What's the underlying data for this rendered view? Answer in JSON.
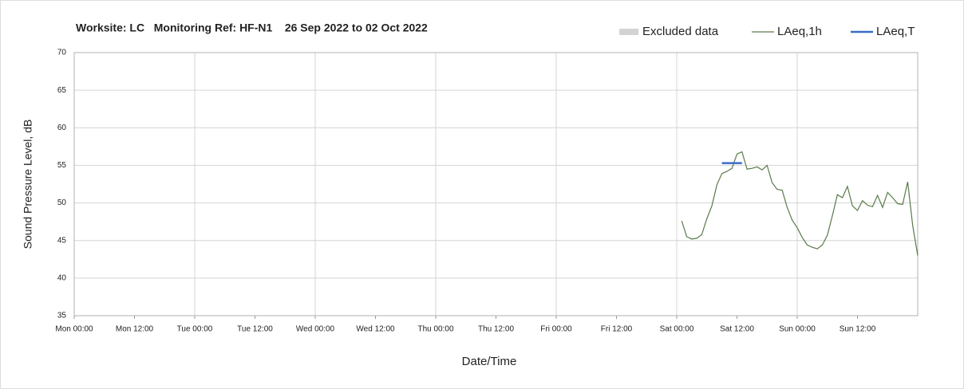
{
  "chart_data": {
    "type": "line",
    "title": "Worksite: LC   Monitoring Ref: HF-N1    26 Sep 2022 to 02 Oct 2022",
    "xlabel": "Date/Time",
    "ylabel": "Sound Pressure Level, dB",
    "xlim": [
      0,
      168
    ],
    "ylim": [
      35,
      70
    ],
    "yticks": [
      35,
      40,
      45,
      50,
      55,
      60,
      65,
      70
    ],
    "xticks": [
      {
        "value": 0,
        "label": "Mon 00:00"
      },
      {
        "value": 12,
        "label": "Mon 12:00"
      },
      {
        "value": 24,
        "label": "Tue 00:00"
      },
      {
        "value": 36,
        "label": "Tue 12:00"
      },
      {
        "value": 48,
        "label": "Wed 00:00"
      },
      {
        "value": 60,
        "label": "Wed 12:00"
      },
      {
        "value": 72,
        "label": "Thu 00:00"
      },
      {
        "value": 84,
        "label": "Thu 12:00"
      },
      {
        "value": 96,
        "label": "Fri 00:00"
      },
      {
        "value": 108,
        "label": "Fri 12:00"
      },
      {
        "value": 120,
        "label": "Sat 00:00"
      },
      {
        "value": 132,
        "label": "Sat 12:00"
      },
      {
        "value": 144,
        "label": "Sun 00:00"
      },
      {
        "value": 156,
        "label": "Sun 12:00"
      }
    ],
    "grid": true,
    "legend": "top-right",
    "series": [
      {
        "name": "Excluded data",
        "color": "#d3d3d3",
        "x": [],
        "values": []
      },
      {
        "name": "LAeq,1h",
        "color": "#5a7a4a",
        "x": [
          121,
          122,
          123,
          124,
          125,
          126,
          127,
          128,
          129,
          130,
          131,
          132,
          133,
          134,
          135,
          136,
          137,
          138,
          139,
          140,
          141,
          142,
          143,
          144,
          145,
          146,
          147,
          148,
          149,
          150,
          151,
          152,
          153,
          154,
          155,
          156,
          157,
          158,
          159,
          160,
          161,
          162,
          163,
          164,
          165,
          166,
          167,
          168
        ],
        "values": [
          47.6,
          45.5,
          45.2,
          45.3,
          45.8,
          47.9,
          49.6,
          52.4,
          53.9,
          54.2,
          54.6,
          56.5,
          56.8,
          54.5,
          54.6,
          54.8,
          54.4,
          55.0,
          52.7,
          51.8,
          51.7,
          49.4,
          47.7,
          46.7,
          45.4,
          44.4,
          44.1,
          43.9,
          44.4,
          45.7,
          48.3,
          51.1,
          50.7,
          52.2,
          49.6,
          49.0,
          50.3,
          49.7,
          49.5,
          51.0,
          49.4,
          51.4,
          50.7,
          49.9,
          49.8,
          52.8,
          47.0,
          43.0
        ]
      },
      {
        "name": "LAeq,T",
        "color": "#3a6cc8",
        "x": [
          129,
          133
        ],
        "values": [
          55.3,
          55.3
        ]
      }
    ]
  }
}
